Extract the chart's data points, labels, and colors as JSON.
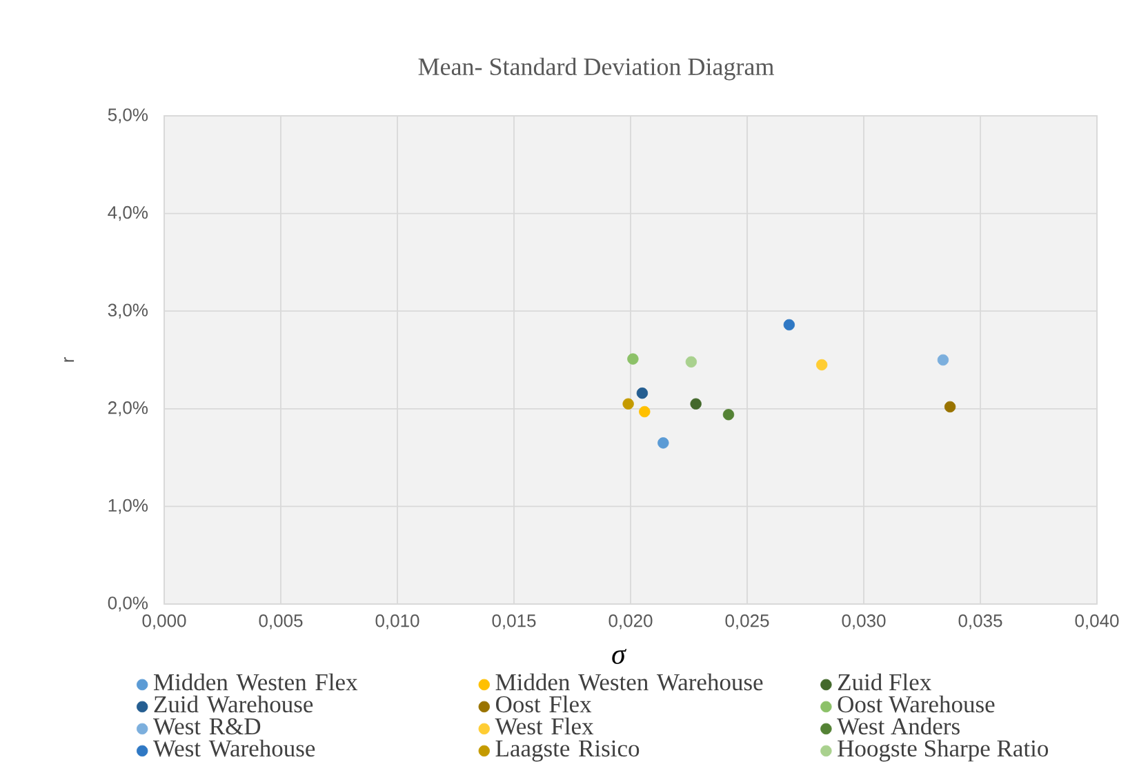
{
  "chart_data": {
    "type": "scatter",
    "title": "Mean- Standard Deviation Diagram",
    "xlabel": "σ",
    "ylabel": "r",
    "xlim": [
      0,
      0.04
    ],
    "xticks": [
      {
        "value": 0,
        "label": "0,000"
      },
      {
        "value": 0.005,
        "label": "0,005"
      },
      {
        "value": 0.01,
        "label": "0,010"
      },
      {
        "value": 0.015,
        "label": "0,015"
      },
      {
        "value": 0.02,
        "label": "0,020"
      },
      {
        "value": 0.025,
        "label": "0,025"
      },
      {
        "value": 0.03,
        "label": "0,030"
      },
      {
        "value": 0.035,
        "label": "0,035"
      },
      {
        "value": 0.04,
        "label": "0,040"
      }
    ],
    "ylim": [
      0,
      5
    ],
    "yticks": [
      {
        "value": 0,
        "label": "0,0%"
      },
      {
        "value": 1,
        "label": "1,0%"
      },
      {
        "value": 2,
        "label": "2,0%"
      },
      {
        "value": 3,
        "label": "3,0%"
      },
      {
        "value": 4,
        "label": "4,0%"
      },
      {
        "value": 5,
        "label": "5,0%"
      }
    ],
    "grid": true,
    "legend": "bottom",
    "marker": "circle",
    "series": [
      {
        "name": "Midden Westen Flex",
        "color": "#5B9BD5",
        "x": [
          0.0214
        ],
        "values": [
          1.65
        ]
      },
      {
        "name": "Midden Westen Warehouse",
        "color": "#FFC000",
        "x": [
          0.0206
        ],
        "values": [
          1.97
        ]
      },
      {
        "name": "Zuid Flex",
        "color": "#43682B",
        "x": [
          0.0228
        ],
        "values": [
          2.05
        ]
      },
      {
        "name": "Zuid Warehouse",
        "color": "#255E91",
        "x": [
          0.0205
        ],
        "values": [
          2.16
        ]
      },
      {
        "name": "Oost Flex",
        "color": "#997300",
        "x": [
          0.0337
        ],
        "values": [
          2.02
        ]
      },
      {
        "name": "Oost Warehouse",
        "color": "#8CC168",
        "x": [
          0.0201
        ],
        "values": [
          2.51
        ]
      },
      {
        "name": "West R&D",
        "color": "#7CAFDD",
        "x": [
          0.0334
        ],
        "values": [
          2.5
        ]
      },
      {
        "name": "West Flex",
        "color": "#FFCD33",
        "x": [
          0.0282
        ],
        "values": [
          2.45
        ]
      },
      {
        "name": "West Anders",
        "color": "#548235",
        "x": [
          0.0242
        ],
        "values": [
          1.94
        ]
      },
      {
        "name": "West Warehouse",
        "color": "#2F78C4",
        "x": [
          0.0268
        ],
        "values": [
          2.86
        ]
      },
      {
        "name": "Laagste Risico",
        "color": "#C49A00",
        "x": [
          0.0199
        ],
        "values": [
          2.05
        ]
      },
      {
        "name": "Hoogste Sharpe Ratio",
        "color": "#A9D18E",
        "x": [
          0.0226
        ],
        "values": [
          2.48
        ]
      }
    ]
  }
}
